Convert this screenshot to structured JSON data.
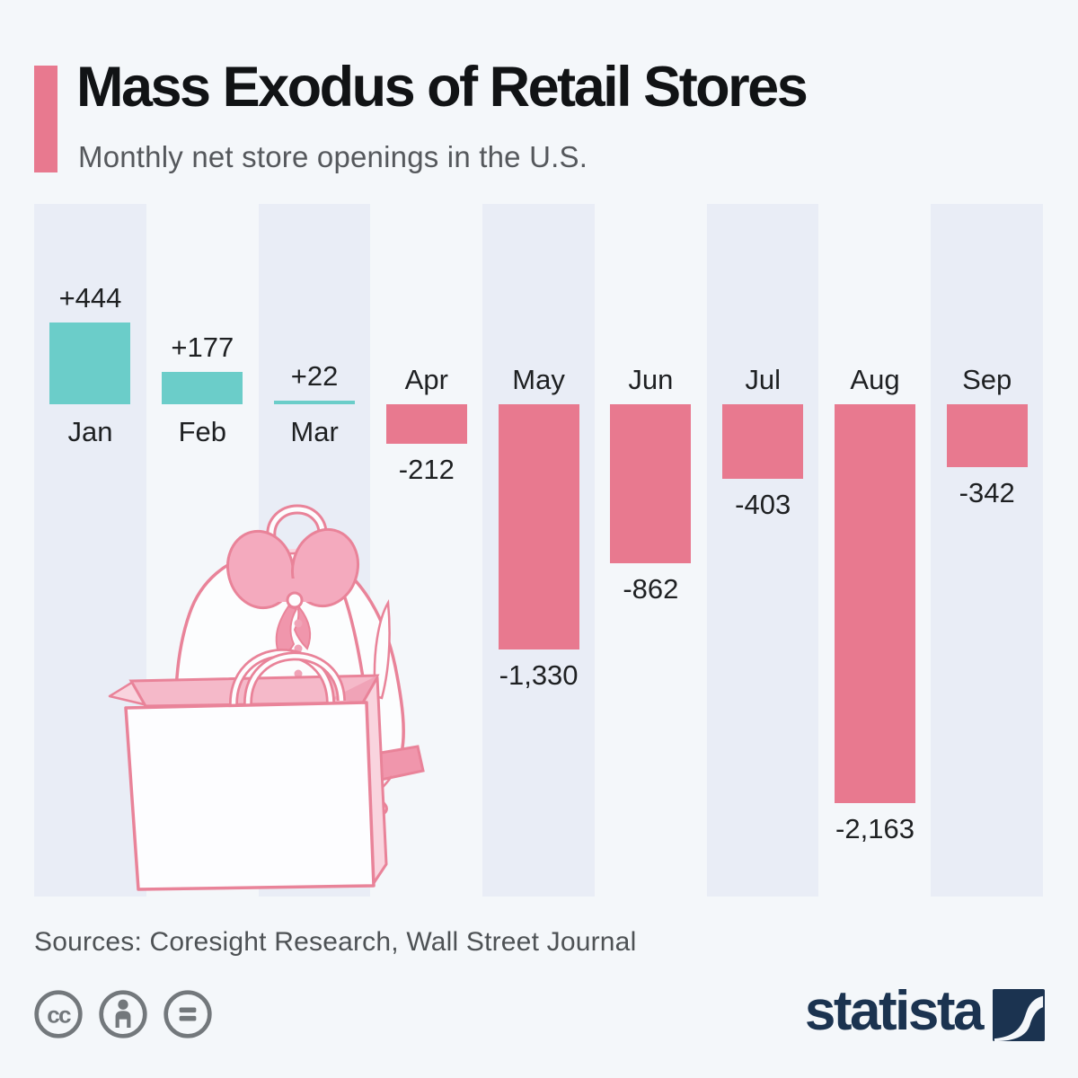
{
  "header": {
    "title": "Mass Exodus of Retail Stores",
    "subtitle": "Monthly net store openings in the U.S."
  },
  "chart_data": {
    "type": "bar",
    "categories": [
      "Jan",
      "Feb",
      "Mar",
      "Apr",
      "May",
      "Jun",
      "Jul",
      "Aug",
      "Sep"
    ],
    "values": [
      444,
      177,
      22,
      -212,
      -1330,
      -862,
      -403,
      -2163,
      -342
    ],
    "value_labels": [
      "+444",
      "+177",
      "+22",
      "-212",
      "-1,330",
      "-862",
      "-403",
      "-2,163",
      "-342"
    ],
    "title": "Mass Exodus of Retail Stores",
    "xlabel": "",
    "ylabel": "Monthly net store openings in the U.S.",
    "ylim": [
      -2300,
      600
    ],
    "baseline": 0,
    "grid": false,
    "legend": false,
    "positive_color": "#6bcdc9",
    "negative_color": "#e8798f",
    "stripe_color": "#e9edf6",
    "label_color": "#1e2022"
  },
  "illustration": {
    "name": "blouse-on-hanger-with-price-tags-and-shopping-bag",
    "tag_label": "$ $ $"
  },
  "footer": {
    "sources": "Sources: Coresight Research, Wall Street Journal",
    "license_icons": [
      "cc-icon",
      "attribution-icon",
      "equal-icon"
    ],
    "brand": "statista"
  },
  "theme": {
    "background": "#f4f7fa",
    "accent_pink": "#e8798f",
    "teal": "#6bcdc9",
    "stripe": "#e9edf6",
    "brand_navy": "#1b3350",
    "icon_gray": "#73787c",
    "text_dark": "#111315",
    "text_gray": "#55585c"
  }
}
